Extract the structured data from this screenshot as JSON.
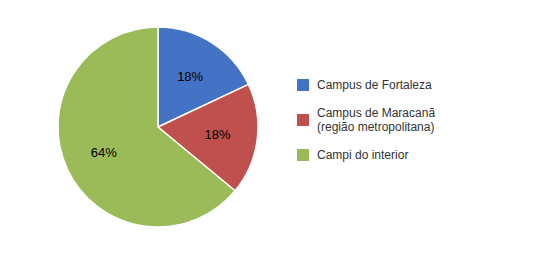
{
  "chart_data": {
    "type": "pie",
    "categories": [
      "Campus de Fortaleza",
      "Campus de Maracanã\n(região metropolitana)",
      "Campi do interior"
    ],
    "values": [
      18,
      18,
      64
    ],
    "value_labels": [
      "18%",
      "18%",
      "64%"
    ],
    "colors": [
      "#4472c4",
      "#c0504d",
      "#9bbb59"
    ],
    "data_labels": true,
    "legend": "right"
  }
}
